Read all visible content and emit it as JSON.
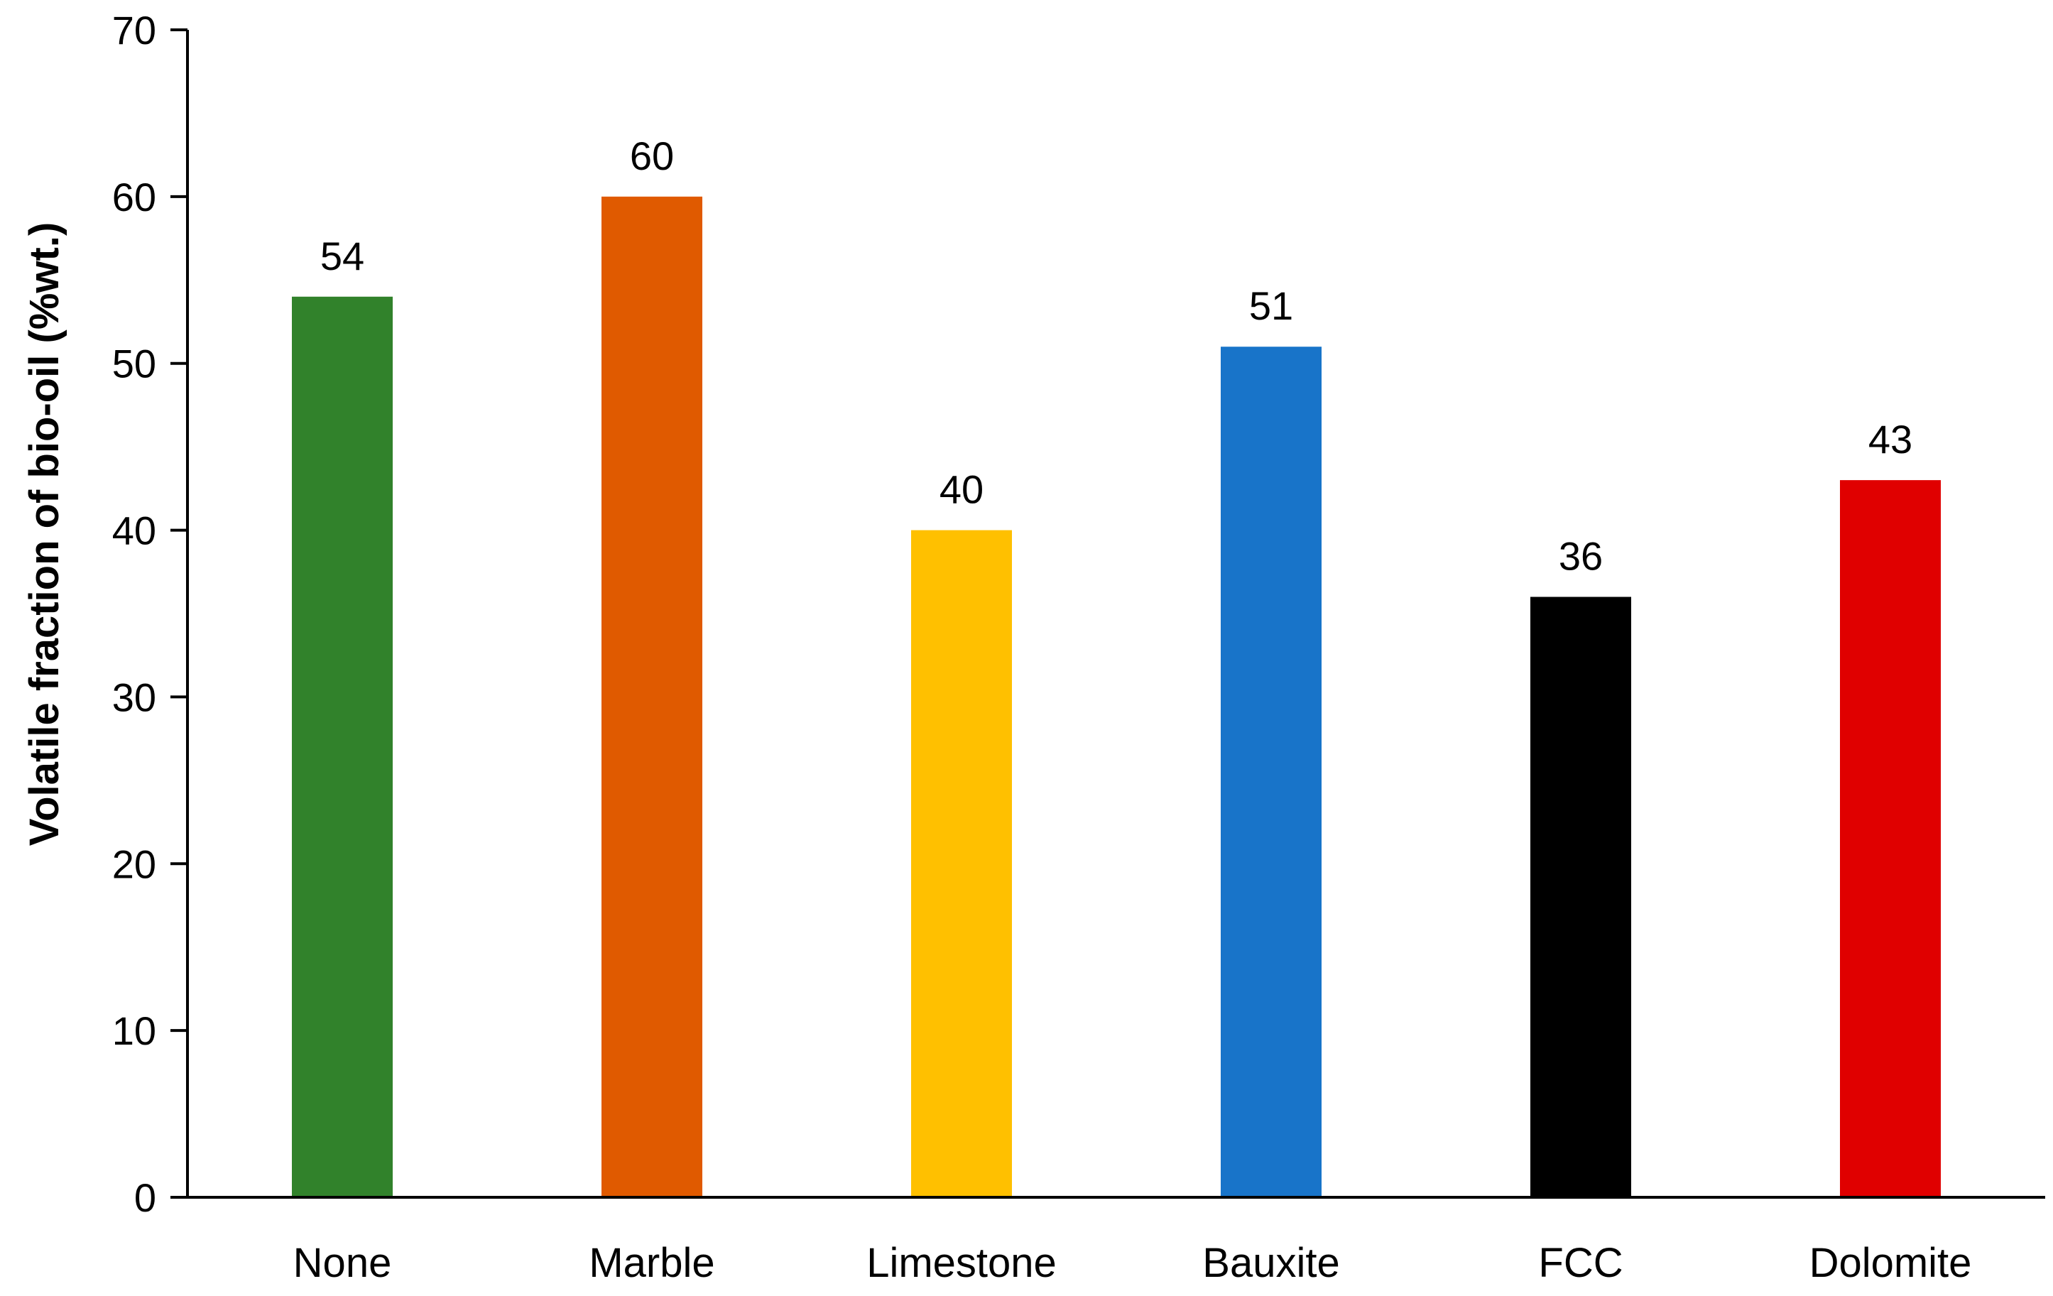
{
  "chart_data": {
    "type": "bar",
    "title": "",
    "xlabel": "",
    "ylabel": "Volatile fraction of bio-oil (%wt.)",
    "ylim": [
      0,
      70
    ],
    "yticks": [
      0,
      10,
      20,
      30,
      40,
      50,
      60,
      70
    ],
    "grid": false,
    "legend": "none",
    "categories": [
      "None",
      "Marble",
      "Limestone",
      "Bauxite",
      "FCC",
      "Dolomite"
    ],
    "values": [
      54,
      60,
      40,
      51,
      36,
      43
    ],
    "colors": [
      "#31822B",
      "#E05A00",
      "#FFC000",
      "#1874C9",
      "#000000",
      "#E00000"
    ],
    "data_labels": [
      "54",
      "60",
      "40",
      "51",
      "36",
      "43"
    ]
  }
}
